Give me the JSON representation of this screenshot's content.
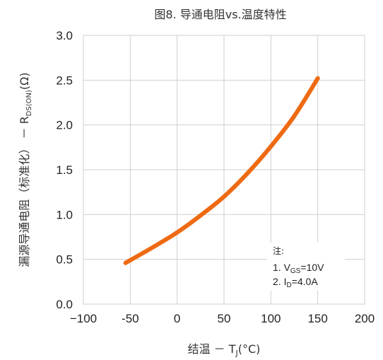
{
  "chart_data": {
    "type": "line",
    "title": "图8. 导通电阻vs.温度特性",
    "xlabel": {
      "prefix": "结温 － T",
      "sub": "J",
      "suffix": "(°C)"
    },
    "ylabel": {
      "prefix": "漏源导通电阻（标准化） － R",
      "sub": "DS(ON)",
      "suffix": "(Ω)"
    },
    "xlim": [
      -100,
      200
    ],
    "ylim": [
      0,
      3.0
    ],
    "xticks": [
      -100,
      -50,
      0,
      50,
      100,
      150,
      200
    ],
    "xtick_labels": [
      "−100",
      "-50",
      "0",
      "50",
      "100",
      "150",
      "200"
    ],
    "yticks": [
      0,
      0.5,
      1.0,
      1.5,
      2.0,
      2.5,
      3.0
    ],
    "ytick_labels": [
      "0.0",
      "0.5",
      "1.0",
      "1.5",
      "2.0",
      "2.5",
      "3.0"
    ],
    "grid": true,
    "series": [
      {
        "color": "#ee6a12",
        "x": [
          -55,
          -25,
          0,
          25,
          50,
          75,
          100,
          125,
          150
        ],
        "y": [
          0.46,
          0.64,
          0.8,
          0.99,
          1.2,
          1.46,
          1.76,
          2.1,
          2.52
        ]
      }
    ],
    "annotation": {
      "title": "注:",
      "lines": [
        {
          "prefix": "1. V",
          "sub": "GS",
          "suffix": "=10V"
        },
        {
          "prefix": "2. I",
          "sub": "D",
          "suffix": "=4.0A"
        }
      ]
    }
  }
}
